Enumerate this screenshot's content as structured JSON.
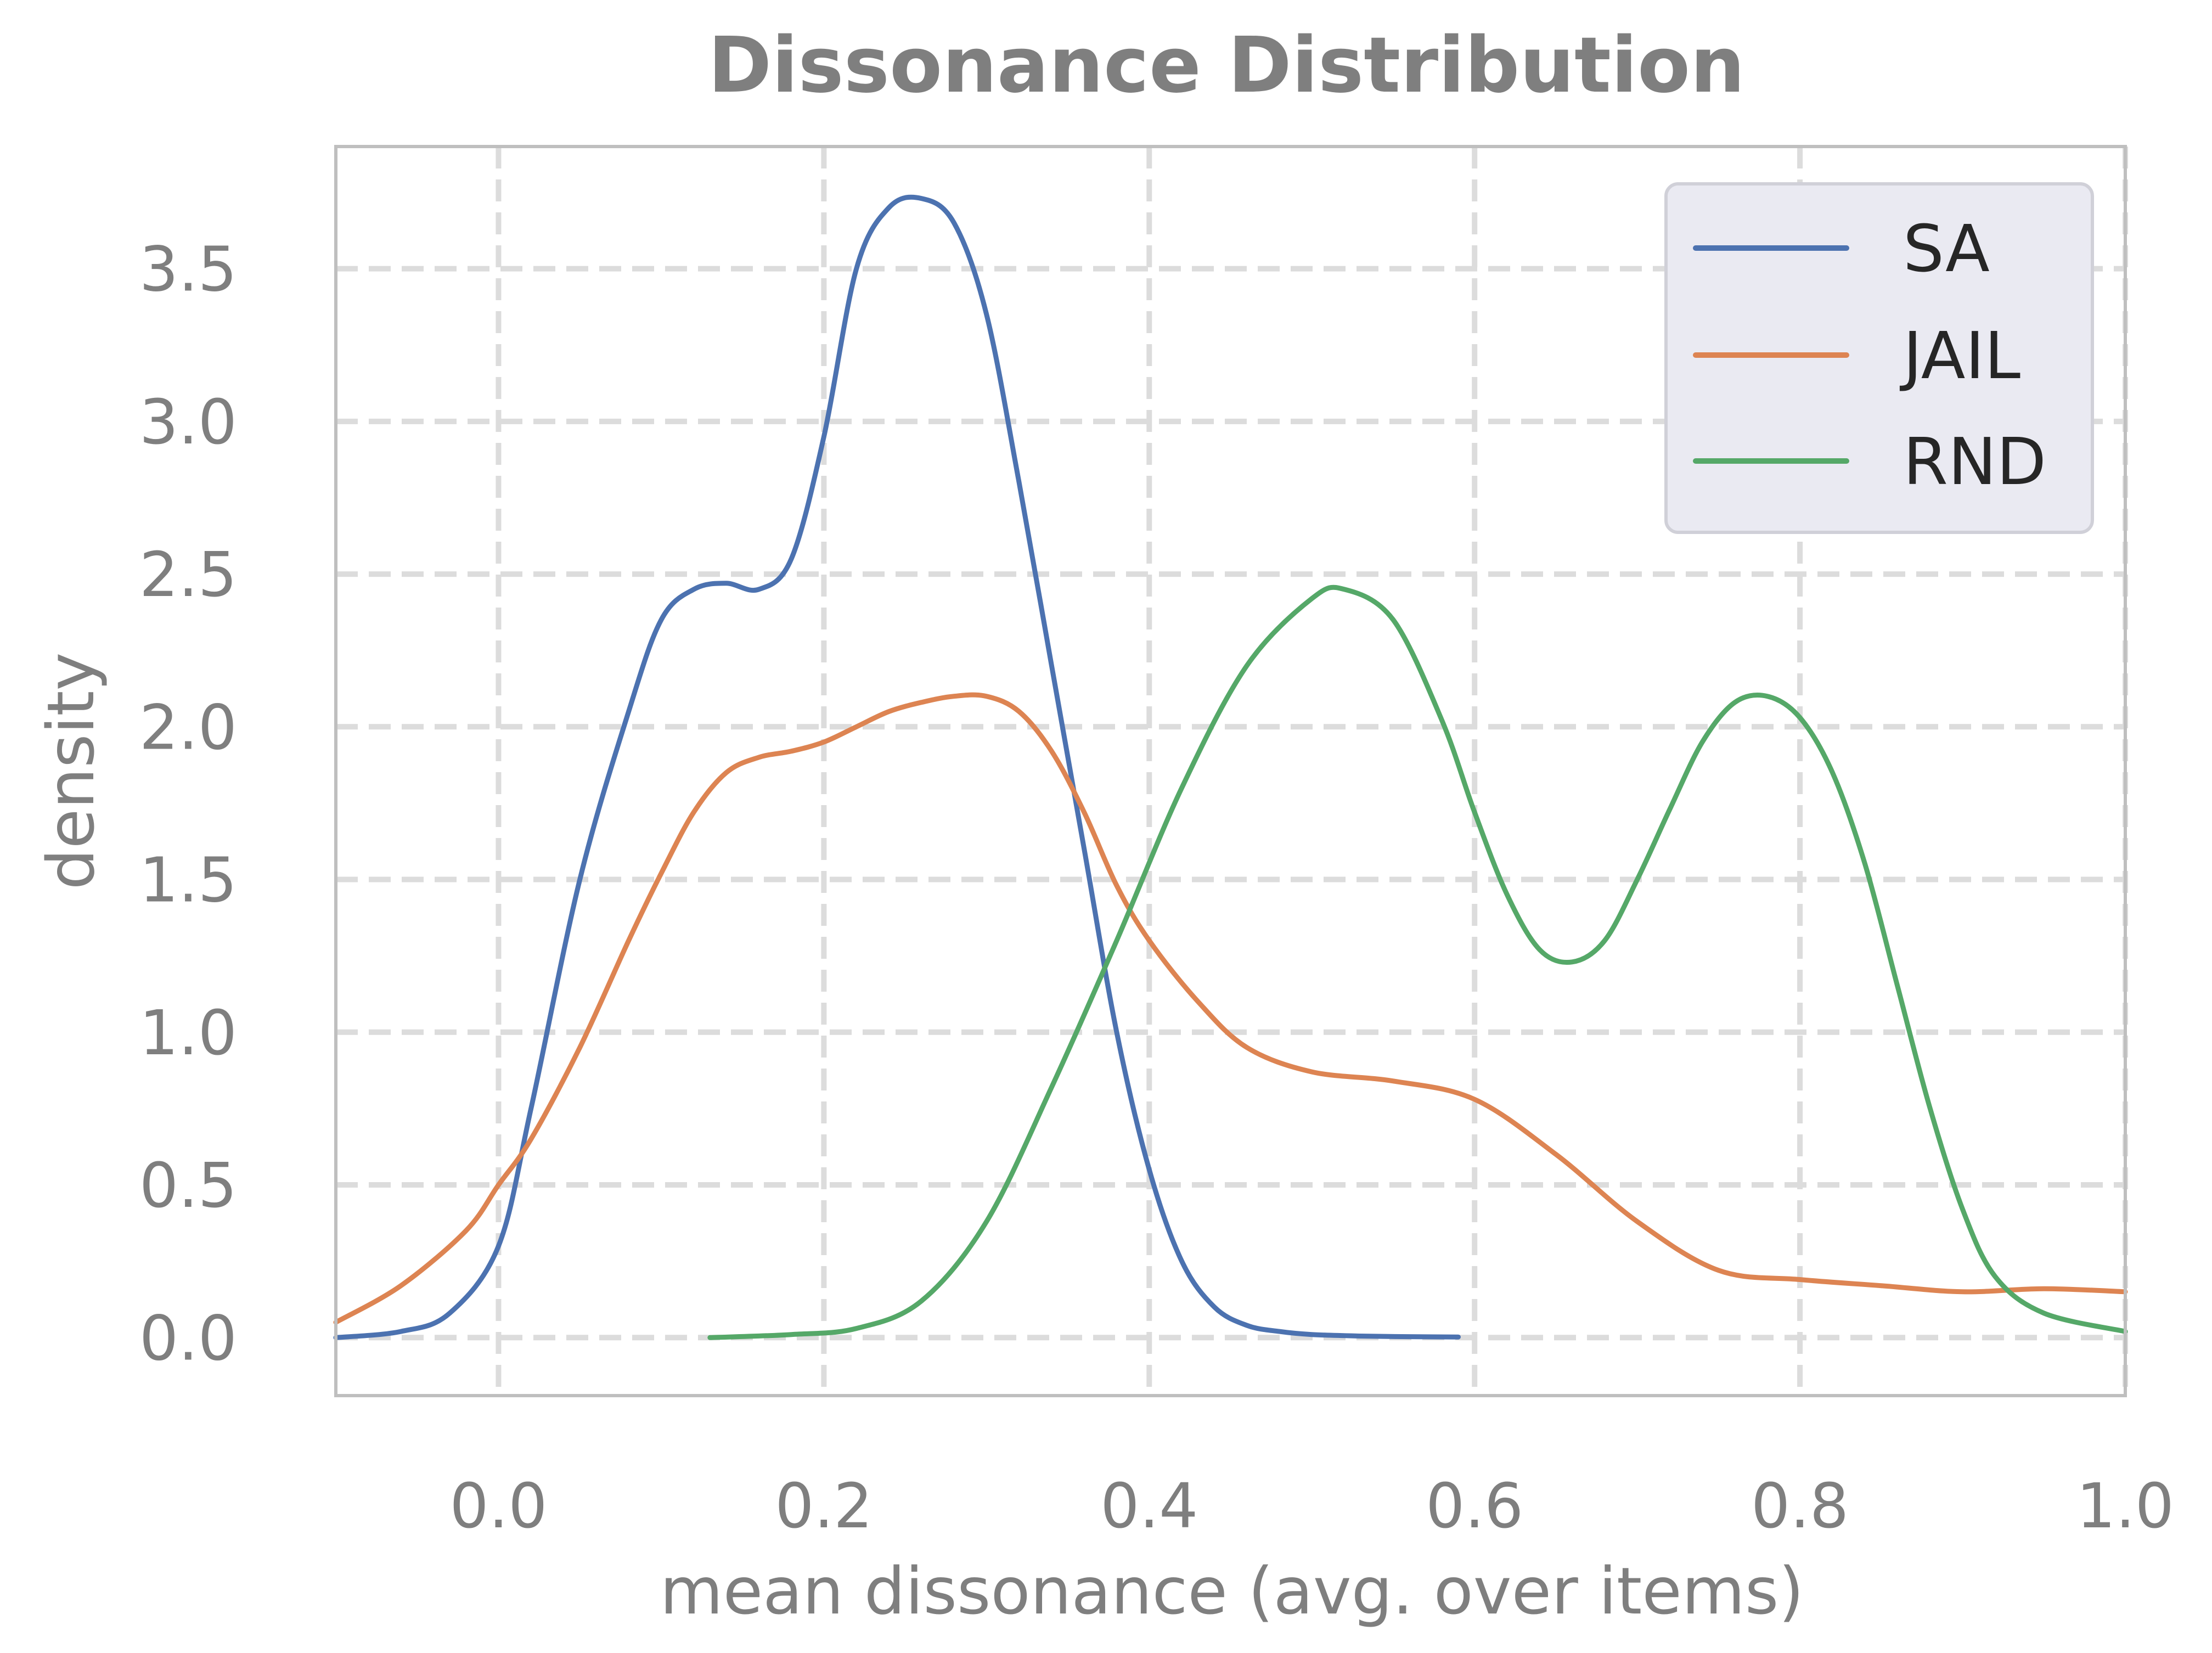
{
  "chart_data": {
    "type": "line",
    "title": "Dissonance Distribution",
    "xlabel": "mean dissonance (avg. over items)",
    "ylabel": "density",
    "xlim": [
      -0.1,
      1.0
    ],
    "ylim": [
      -0.19,
      3.9
    ],
    "xticks": [
      0.0,
      0.2,
      0.4,
      0.6,
      0.8,
      1.0
    ],
    "xtick_labels": [
      "0.0",
      "0.2",
      "0.4",
      "0.6",
      "0.8",
      "1.0"
    ],
    "yticks": [
      0.0,
      0.5,
      1.0,
      1.5,
      2.0,
      2.5,
      3.0,
      3.5
    ],
    "ytick_labels": [
      "0.0",
      "0.5",
      "1.0",
      "1.5",
      "2.0",
      "2.5",
      "3.0",
      "3.5"
    ],
    "grid": true,
    "grid_style": "dashed",
    "legend_position": "top-right",
    "series": [
      {
        "name": "SA",
        "color": "#4c72b0",
        "x": [
          -0.1,
          -0.06,
          -0.03,
          0.0,
          0.02,
          0.05,
          0.08,
          0.1,
          0.12,
          0.14,
          0.16,
          0.18,
          0.2,
          0.22,
          0.24,
          0.26,
          0.28,
          0.3,
          0.32,
          0.34,
          0.36,
          0.38,
          0.4,
          0.42,
          0.44,
          0.46,
          0.48,
          0.5,
          0.53,
          0.56,
          0.59
        ],
        "y": [
          0.0,
          0.02,
          0.08,
          0.3,
          0.75,
          1.5,
          2.05,
          2.35,
          2.45,
          2.47,
          2.45,
          2.55,
          2.95,
          3.5,
          3.7,
          3.73,
          3.65,
          3.35,
          2.8,
          2.2,
          1.6,
          1.0,
          0.55,
          0.25,
          0.1,
          0.04,
          0.02,
          0.01,
          0.005,
          0.003,
          0.002
        ]
      },
      {
        "name": "JAIL",
        "color": "#dd8452",
        "x": [
          -0.1,
          -0.06,
          -0.02,
          0.0,
          0.02,
          0.05,
          0.08,
          0.1,
          0.12,
          0.14,
          0.16,
          0.18,
          0.2,
          0.22,
          0.24,
          0.26,
          0.28,
          0.3,
          0.32,
          0.34,
          0.36,
          0.38,
          0.4,
          0.43,
          0.46,
          0.5,
          0.55,
          0.6,
          0.65,
          0.7,
          0.75,
          0.8,
          0.85,
          0.9,
          0.95,
          1.0
        ],
        "y": [
          0.05,
          0.17,
          0.35,
          0.5,
          0.65,
          0.95,
          1.3,
          1.52,
          1.72,
          1.85,
          1.9,
          1.92,
          1.95,
          2.0,
          2.05,
          2.08,
          2.1,
          2.1,
          2.05,
          1.92,
          1.72,
          1.48,
          1.3,
          1.1,
          0.95,
          0.87,
          0.84,
          0.78,
          0.6,
          0.38,
          0.22,
          0.19,
          0.17,
          0.15,
          0.16,
          0.15
        ]
      },
      {
        "name": "RND",
        "color": "#55a868",
        "x": [
          0.13,
          0.18,
          0.22,
          0.26,
          0.3,
          0.34,
          0.38,
          0.42,
          0.46,
          0.5,
          0.52,
          0.55,
          0.58,
          0.6,
          0.62,
          0.64,
          0.66,
          0.68,
          0.7,
          0.72,
          0.74,
          0.76,
          0.78,
          0.8,
          0.82,
          0.84,
          0.86,
          0.88,
          0.9,
          0.92,
          0.95,
          1.0
        ],
        "y": [
          0.0,
          0.01,
          0.03,
          0.12,
          0.38,
          0.82,
          1.3,
          1.8,
          2.2,
          2.42,
          2.45,
          2.35,
          2.02,
          1.72,
          1.45,
          1.27,
          1.23,
          1.3,
          1.5,
          1.73,
          1.95,
          2.08,
          2.1,
          2.03,
          1.85,
          1.55,
          1.15,
          0.75,
          0.42,
          0.2,
          0.08,
          0.02
        ]
      }
    ]
  }
}
